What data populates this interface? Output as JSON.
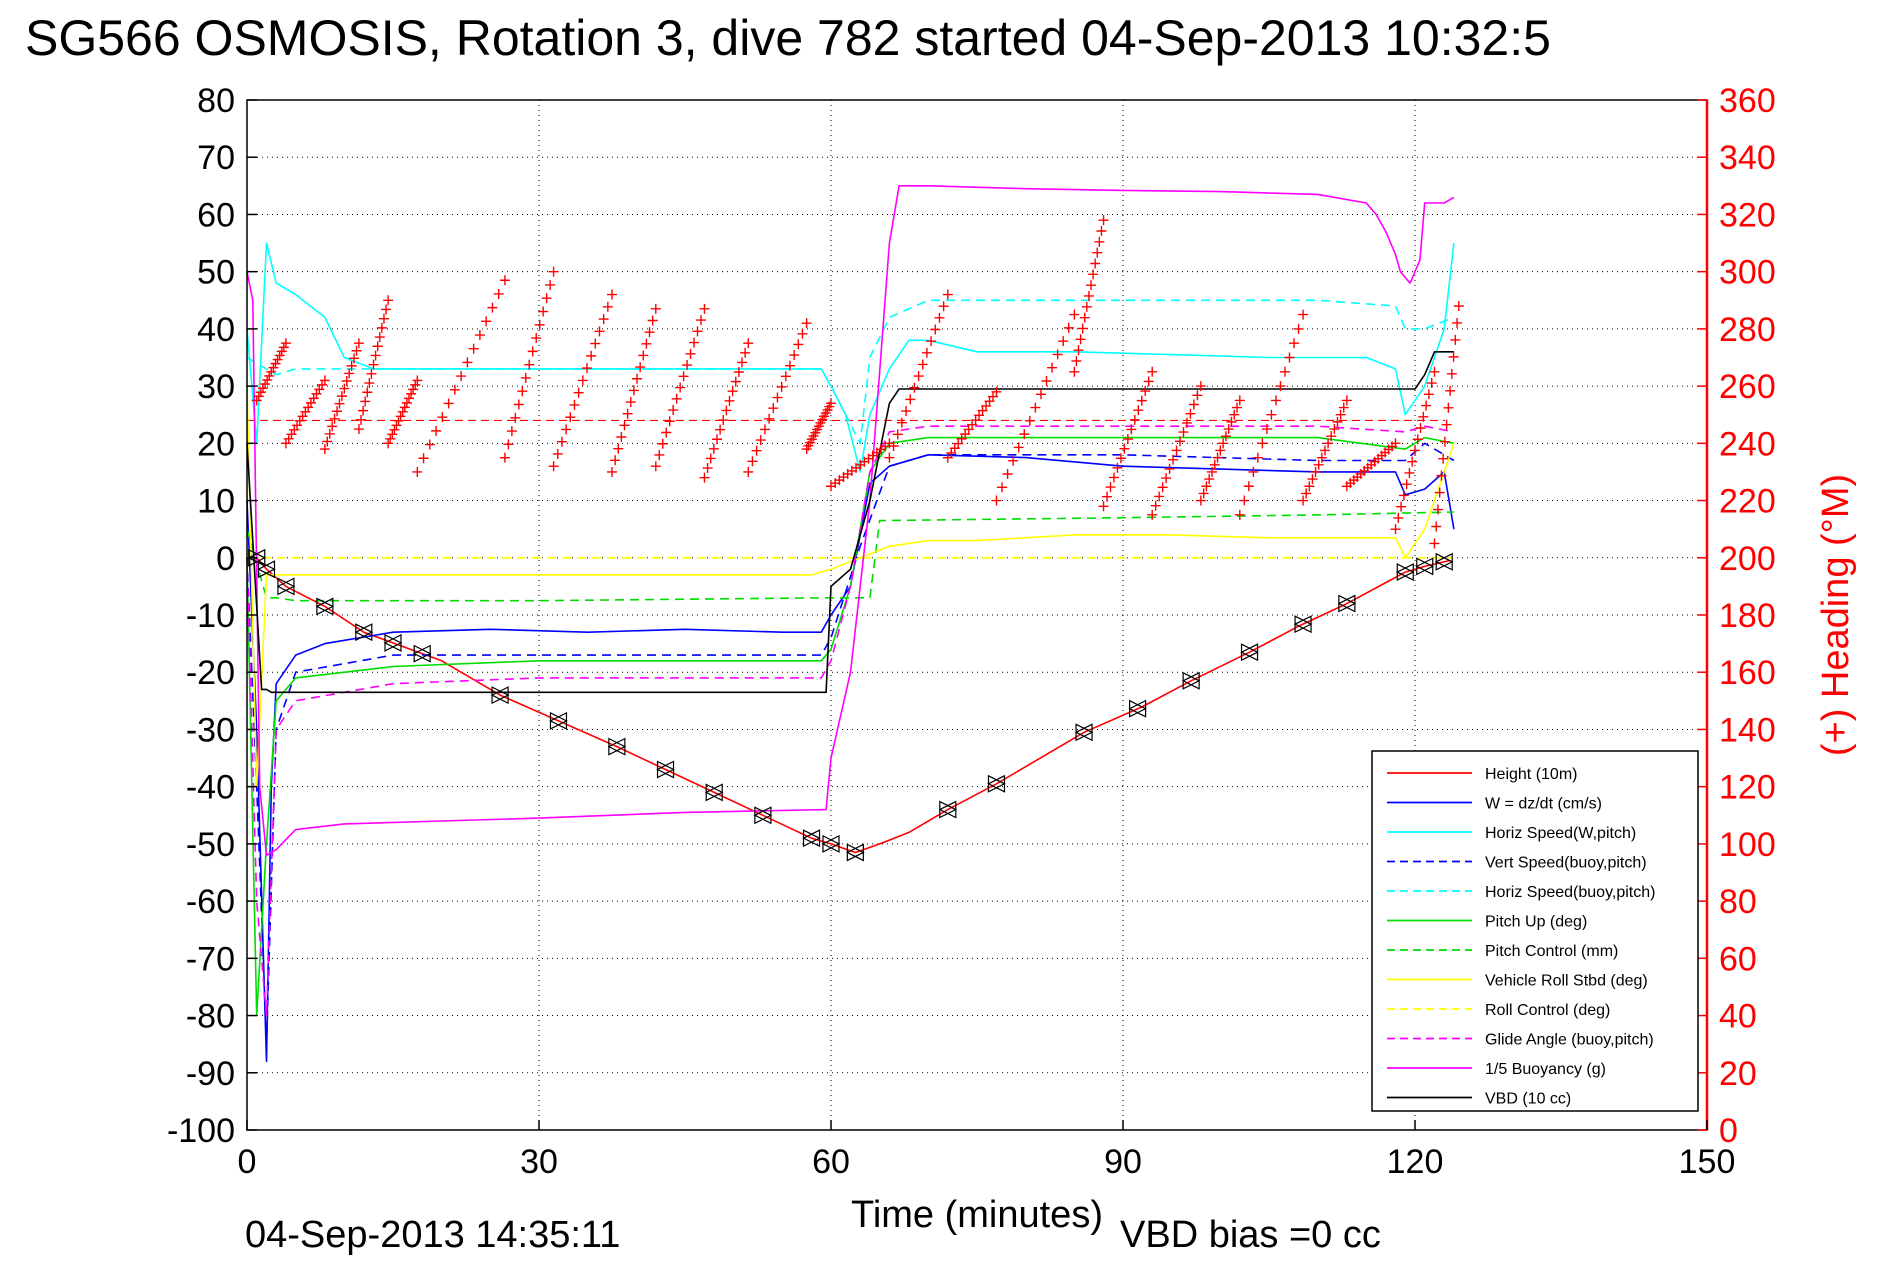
{
  "chart_data": {
    "type": "line",
    "title": "SG566 OSMOSIS, Rotation 3, dive 782 started 04-Sep-2013 10:32:5",
    "xlabel": "Time (minutes)",
    "ylabel_right": "(+) Heading (°M)",
    "footer_left": "04-Sep-2013 14:35:11",
    "footer_right": "VBD bias =0 cc",
    "xlim": [
      0,
      150
    ],
    "ylim_left": [
      -100,
      80
    ],
    "ylim_right": [
      0,
      360
    ],
    "xticks": [
      0,
      30,
      60,
      90,
      120,
      150
    ],
    "xtick_labels": [
      "0",
      "30",
      "60",
      "90",
      "120",
      "150"
    ],
    "yticks_left": [
      80,
      70,
      60,
      50,
      40,
      30,
      20,
      10,
      0,
      -10,
      -20,
      -30,
      -40,
      -50,
      -60,
      -70,
      -80,
      -90,
      -100
    ],
    "ytick_labels_left": [
      "80",
      "70",
      "60",
      "50",
      "40",
      "30",
      "20",
      "10",
      "0",
      "-10",
      "-20",
      "-30",
      "-40",
      "-50",
      "-60",
      "-70",
      "-80",
      "-90",
      "-100"
    ],
    "yticks_right": [
      360,
      340,
      320,
      300,
      280,
      260,
      240,
      220,
      200,
      180,
      160,
      140,
      120,
      100,
      80,
      60,
      40,
      20,
      0
    ],
    "ytick_labels_right": [
      "360",
      "340",
      "320",
      "300",
      "280",
      "260",
      "240",
      "220",
      "200",
      "180",
      "160",
      "140",
      "120",
      "100",
      "80",
      "60",
      "40",
      "20",
      "0"
    ],
    "grid": "dotted",
    "legend_position": "bottom-right",
    "colors": {
      "axis_right": "#ff0000",
      "height": "#ff0000",
      "w": "#0000ff",
      "horiz_speed": "#00ffff",
      "pitch": "#00dd00",
      "roll": "#ffff00",
      "glide": "#ff00ff",
      "buoyancy": "#ff00ff",
      "vbd": "#000000",
      "heading": "#ff0000"
    },
    "series": [
      {
        "name": "Height (10m)",
        "color": "#ff0000",
        "dash": "solid",
        "x": [
          1,
          2,
          4,
          8,
          12,
          16,
          20,
          26,
          32,
          38,
          43,
          48,
          53,
          58,
          60,
          62.5,
          65,
          68,
          72,
          77,
          86,
          92,
          97,
          103,
          108,
          113,
          119,
          121,
          123.5
        ],
        "y": [
          0,
          -2,
          -5,
          -8.5,
          -13,
          -15.5,
          -18,
          -24,
          -28.5,
          -33,
          -37,
          -41,
          -45,
          -49,
          -50,
          -51.5,
          -50,
          -48,
          -44,
          -39.5,
          -30.5,
          -26,
          -21.5,
          -16.5,
          -12,
          -8,
          -2.5,
          -1.5,
          -0.5
        ]
      },
      {
        "name": "W = dz/dt (cm/s)",
        "color": "#0000ff",
        "dash": "solid",
        "x": [
          0,
          1,
          2,
          2.5,
          3,
          5,
          8,
          15,
          25,
          35,
          45,
          55,
          59,
          60,
          62,
          64,
          66,
          70,
          80,
          90,
          100,
          110,
          118,
          119,
          121,
          123,
          124
        ],
        "y": [
          10,
          -30,
          -88,
          -40,
          -22,
          -17,
          -15,
          -13,
          -12.5,
          -13,
          -12.5,
          -13,
          -13,
          -10,
          -5,
          13,
          16,
          18,
          17.5,
          16,
          15.5,
          15,
          15,
          11,
          12,
          15,
          5
        ]
      },
      {
        "name": "Horiz Speed(W,pitch)",
        "color": "#00ffff",
        "dash": "solid",
        "x": [
          0,
          1,
          2,
          3,
          5,
          8,
          10,
          13,
          18,
          25,
          35,
          45,
          55,
          59,
          60,
          61.5,
          63,
          64,
          66,
          68,
          70,
          75,
          85,
          95,
          105,
          115,
          118,
          119,
          121,
          123,
          124
        ],
        "y": [
          40,
          20,
          55,
          48,
          46,
          42,
          35,
          33,
          33,
          33,
          33,
          33,
          33,
          33,
          30,
          25,
          15,
          25,
          33,
          38,
          38,
          36,
          36,
          35.5,
          35,
          35,
          33,
          25,
          30,
          40,
          55
        ]
      },
      {
        "name": "Vert Speed(buoy,pitch)",
        "color": "#0000ff",
        "dash": "dashed",
        "x": [
          0,
          1,
          2,
          3,
          5,
          15,
          30,
          45,
          59,
          60,
          63,
          66,
          70,
          90,
          110,
          119,
          121,
          124
        ],
        "y": [
          0,
          -40,
          -85,
          -30,
          -20,
          -17,
          -17,
          -17,
          -17,
          -14,
          2,
          16,
          18,
          18,
          17,
          17,
          20,
          17
        ]
      },
      {
        "name": "Horiz Speed(buoy,pitch)",
        "color": "#00ffff",
        "dash": "dashed",
        "x": [
          0,
          3,
          5,
          15,
          30,
          45,
          59,
          60,
          63,
          64,
          66,
          70,
          90,
          110,
          118,
          119,
          121,
          124
        ],
        "y": [
          35,
          32,
          33,
          33,
          33,
          33,
          33,
          30,
          20,
          35,
          42,
          45,
          45,
          45,
          44,
          40,
          40,
          42
        ]
      },
      {
        "name": "Pitch Up (deg)",
        "color": "#00dd00",
        "dash": "solid",
        "x": [
          0,
          1,
          2,
          3,
          5,
          15,
          30,
          45,
          59,
          60,
          62,
          64,
          66,
          70,
          90,
          110,
          119,
          121,
          124
        ],
        "y": [
          0,
          -80,
          -50,
          -25,
          -21,
          -19,
          -18,
          -18,
          -18,
          -16,
          -5,
          15,
          20,
          21,
          21,
          21,
          19,
          21,
          20
        ]
      },
      {
        "name": "Pitch Control (mm)",
        "color": "#00dd00",
        "dash": "dashed",
        "x": [
          0,
          2,
          3,
          5,
          30,
          59.5,
          60.5,
          64,
          65,
          90,
          110,
          124
        ],
        "y": [
          5,
          -7,
          -7,
          -7.5,
          -7.5,
          -7,
          -7,
          -7,
          6.5,
          7,
          7.5,
          8
        ]
      },
      {
        "name": "Vehicle Roll Stbd (deg)",
        "color": "#ffff00",
        "dash": "solid",
        "x": [
          0,
          1,
          2,
          4,
          8,
          16,
          22,
          30,
          40,
          50,
          58,
          60,
          63,
          66,
          70,
          75,
          85,
          95,
          105,
          115,
          118,
          119,
          121,
          123,
          124
        ],
        "y": [
          30,
          -40,
          -3,
          -3,
          -3,
          -3,
          -3,
          -3,
          -3,
          -3,
          -3,
          -2,
          0,
          2,
          3,
          3,
          4,
          4,
          3.5,
          3.5,
          3.5,
          0,
          5,
          15,
          20
        ]
      },
      {
        "name": "Roll Control (deg)",
        "color": "#ffff00",
        "dash": "dashed",
        "x": [
          0,
          2,
          4,
          30,
          59,
          60,
          63,
          64,
          124
        ],
        "y": [
          0,
          0,
          0,
          0,
          0,
          0,
          0,
          0,
          0
        ]
      },
      {
        "name": "Glide Angle (buoy,pitch)",
        "color": "#ff00ff",
        "dash": "dashed",
        "x": [
          0,
          1,
          2,
          3,
          5,
          15,
          30,
          45,
          59,
          60,
          62,
          64,
          66,
          70,
          90,
          110,
          119,
          121,
          124
        ],
        "y": [
          0,
          -60,
          -80,
          -30,
          -25,
          -22,
          -21,
          -21,
          -21,
          -18,
          -5,
          15,
          22,
          23,
          23,
          23,
          22,
          23,
          22
        ]
      },
      {
        "name": "1/5 Buoyancy (g)",
        "color": "#ff00ff",
        "dash": "solid",
        "x": [
          0,
          0.6,
          1.3,
          2,
          3,
          5,
          10,
          20,
          30,
          45,
          59.5,
          60,
          62,
          64,
          66,
          67,
          70,
          80,
          90,
          100,
          110,
          115,
          116,
          117,
          118,
          118.5,
          119.5,
          120.5,
          121,
          123,
          124
        ],
        "y": [
          50,
          45,
          -40,
          -52,
          -51,
          -47.5,
          -46.5,
          -46,
          -45.5,
          -44.5,
          -44,
          -35,
          -20,
          10,
          55,
          65,
          65,
          64.5,
          64.2,
          64,
          63.5,
          62,
          60,
          57,
          53,
          50,
          48,
          52,
          62,
          62,
          63
        ]
      },
      {
        "name": "VBD (10 cc)",
        "color": "#000000",
        "dash": "solid",
        "x": [
          0,
          1.5,
          2,
          2.5,
          3,
          30,
          59.5,
          60,
          62,
          64,
          66,
          67,
          70,
          90,
          110,
          119.5,
          120,
          121,
          122,
          124
        ],
        "y": [
          20,
          -23,
          -23,
          -23.5,
          -23.5,
          -23.5,
          -23.5,
          -5,
          -2,
          10,
          27,
          29.5,
          29.5,
          29.5,
          29.5,
          29.5,
          29.5,
          32,
          36,
          36
        ]
      },
      {
        "name": "Heading",
        "color": "#ff0000",
        "dash": "markers",
        "marker": "+",
        "axis": "right",
        "segments": [
          {
            "t": [
              1,
              4
            ],
            "h": [
              255,
              275
            ]
          },
          {
            "t": [
              4,
              8
            ],
            "h": [
              240,
              262
            ]
          },
          {
            "t": [
              8,
              11.5
            ],
            "h": [
              238,
              275
            ]
          },
          {
            "t": [
              11.5,
              14.5
            ],
            "h": [
              245,
              290
            ]
          },
          {
            "t": [
              14.5,
              17.5
            ],
            "h": [
              240,
              262
            ]
          },
          {
            "t": [
              17.5,
              26.5
            ],
            "h": [
              230,
              297
            ]
          },
          {
            "t": [
              26.5,
              31.5
            ],
            "h": [
              235,
              300
            ]
          },
          {
            "t": [
              31.5,
              37.5
            ],
            "h": [
              232,
              292
            ]
          },
          {
            "t": [
              37.5,
              42
            ],
            "h": [
              230,
              287
            ]
          },
          {
            "t": [
              42,
              47
            ],
            "h": [
              232,
              287
            ]
          },
          {
            "t": [
              47,
              51.5
            ],
            "h": [
              228,
              275
            ]
          },
          {
            "t": [
              51.5,
              57.5
            ],
            "h": [
              230,
              282
            ]
          },
          {
            "t": [
              57.5,
              60
            ],
            "h": [
              238,
              254
            ]
          },
          {
            "t": [
              60,
              66
            ],
            "h": [
              225,
              240
            ]
          },
          {
            "t": [
              66,
              72
            ],
            "h": [
              235,
              292
            ]
          },
          {
            "t": [
              72,
              77
            ],
            "h": [
              235,
              258
            ]
          },
          {
            "t": [
              77,
              85
            ],
            "h": [
              220,
              285
            ]
          },
          {
            "t": [
              85,
              88
            ],
            "h": [
              265,
              318
            ]
          },
          {
            "t": [
              88,
              93
            ],
            "h": [
              218,
              265
            ]
          },
          {
            "t": [
              93,
              98
            ],
            "h": [
              215,
              260
            ]
          },
          {
            "t": [
              98,
              102
            ],
            "h": [
              220,
              255
            ]
          },
          {
            "t": [
              102,
              108.5
            ],
            "h": [
              215,
              285
            ]
          },
          {
            "t": [
              108.5,
              113
            ],
            "h": [
              220,
              255
            ]
          },
          {
            "t": [
              113,
              118
            ],
            "h": [
              225,
              240
            ]
          },
          {
            "t": [
              118,
              122
            ],
            "h": [
              210,
              265
            ]
          },
          {
            "t": [
              122,
              124.5
            ],
            "h": [
              205,
              288
            ]
          }
        ]
      }
    ],
    "height_markers_x": [
      1,
      2,
      4,
      8,
      12,
      15,
      18,
      26,
      32,
      38,
      43,
      48,
      53,
      58,
      60,
      62.5,
      72,
      77,
      86,
      91.5,
      97,
      103,
      108.5,
      113,
      119,
      121,
      123
    ],
    "reference_line_heading_deg": 248
  }
}
